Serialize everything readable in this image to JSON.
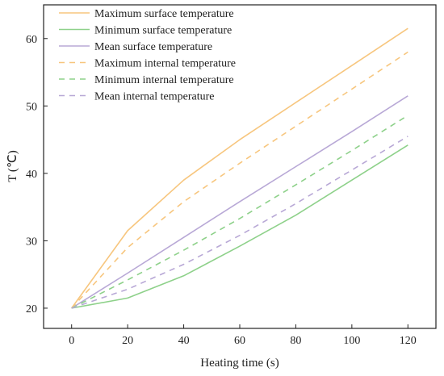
{
  "chart_data": {
    "type": "line",
    "xlabel": "Heating time (s)",
    "ylabel": "T (℃)",
    "xlim": [
      -10,
      130
    ],
    "ylim": [
      17,
      65
    ],
    "xticks": [
      0,
      20,
      40,
      60,
      80,
      100,
      120
    ],
    "yticks": [
      20,
      30,
      40,
      50,
      60
    ],
    "grid": false,
    "legend_position": "top-left",
    "series": [
      {
        "name": "Maximum surface temperature",
        "color": "#f7c67e",
        "dash": "solid",
        "x": [
          0,
          20,
          40,
          60,
          80,
          100,
          120
        ],
        "y": [
          20,
          31.5,
          39,
          45,
          50.5,
          56,
          61.5
        ]
      },
      {
        "name": "Minimum surface temperature",
        "color": "#8ed18a",
        "dash": "solid",
        "x": [
          0,
          20,
          40,
          60,
          80,
          100,
          120
        ],
        "y": [
          20,
          21.5,
          24.8,
          29.2,
          33.8,
          39,
          44.2
        ]
      },
      {
        "name": "Mean surface temperature",
        "color": "#b8a8d6",
        "dash": "solid",
        "x": [
          0,
          20,
          40,
          60,
          80,
          100,
          120
        ],
        "y": [
          20,
          25.2,
          30.5,
          35.8,
          41,
          46.2,
          51.5
        ]
      },
      {
        "name": "Maximum internal temperature",
        "color": "#f7c67e",
        "dash": "dashed",
        "x": [
          0,
          20,
          40,
          60,
          80,
          100,
          120
        ],
        "y": [
          20,
          29,
          35.8,
          41.5,
          47,
          52.5,
          58
        ]
      },
      {
        "name": "Minimum internal temperature",
        "color": "#8ed18a",
        "dash": "dashed",
        "x": [
          0,
          20,
          40,
          60,
          80,
          100,
          120
        ],
        "y": [
          20,
          24.2,
          28.6,
          33.3,
          38.3,
          43.4,
          48.6
        ]
      },
      {
        "name": "Mean internal temperature",
        "color": "#b8a8d6",
        "dash": "dashed",
        "x": [
          0,
          20,
          40,
          60,
          80,
          100,
          120
        ],
        "y": [
          20,
          22.8,
          26.5,
          30.8,
          35.5,
          40.5,
          45.5
        ]
      }
    ]
  }
}
